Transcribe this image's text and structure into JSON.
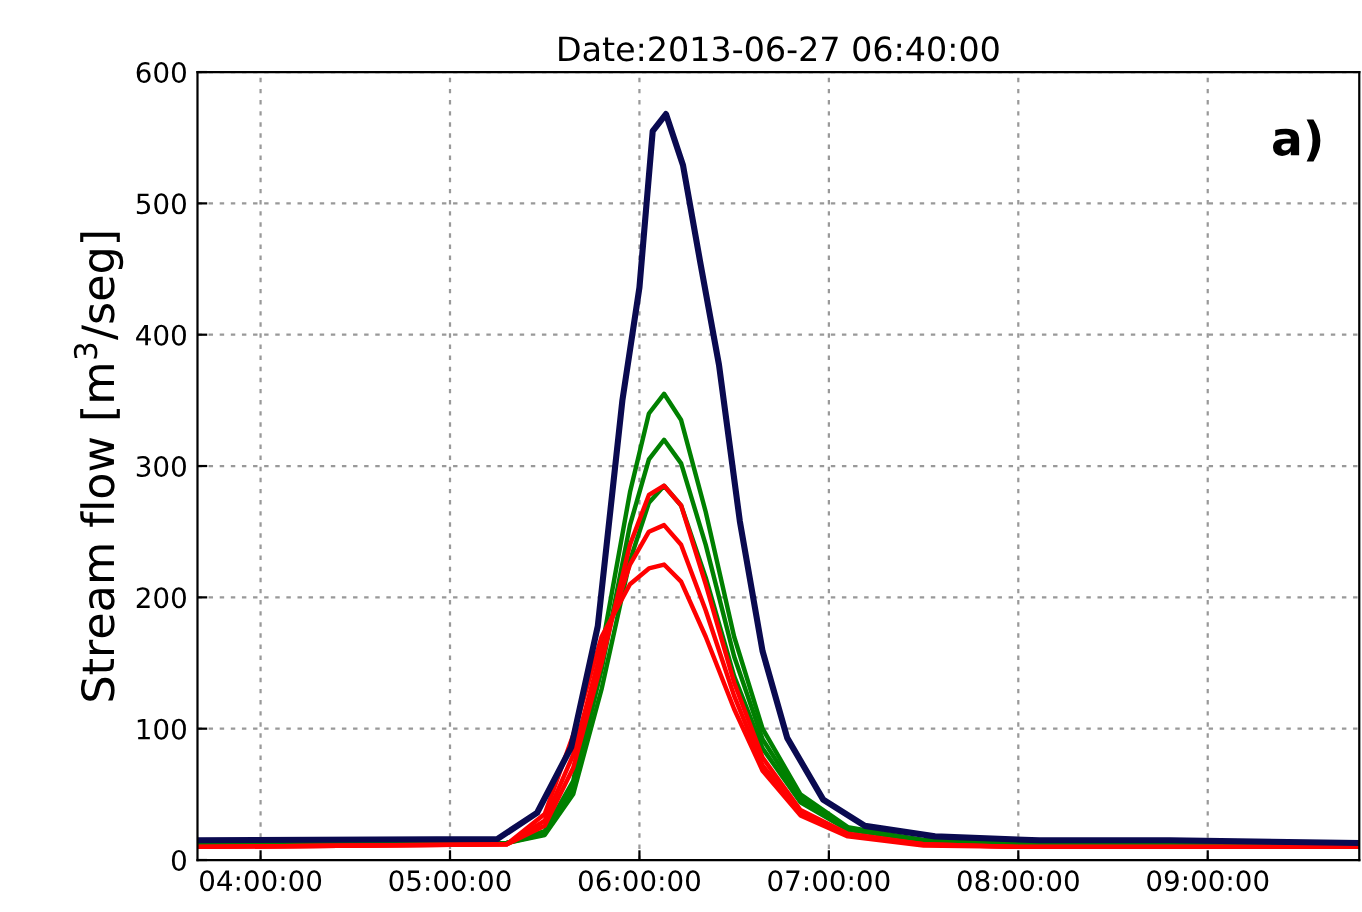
{
  "chart_data": {
    "type": "line",
    "title": "Date:2013-06-27 06:40:00",
    "ylabel": "Stream flow [m$^{3}$/seg]",
    "annotations": [
      "a)"
    ],
    "x": [
      3.667,
      5.3,
      5.5,
      5.65,
      5.8,
      5.95,
      6.05,
      6.13,
      6.22,
      6.35,
      6.5,
      6.65,
      6.85,
      7.1,
      7.5,
      8.0,
      9.8
    ],
    "series": [
      {
        "color": "#008000",
        "values": [
          12,
          13,
          22,
          60,
          160,
          280,
          340,
          355,
          335,
          265,
          170,
          100,
          50,
          25,
          15,
          13,
          12
        ]
      },
      {
        "color": "#008000",
        "values": [
          12,
          13,
          20,
          55,
          145,
          255,
          305,
          320,
          302,
          240,
          155,
          92,
          47,
          24,
          15,
          13,
          12
        ]
      },
      {
        "color": "#008000",
        "values": [
          12,
          13,
          19,
          50,
          130,
          228,
          272,
          285,
          270,
          215,
          140,
          85,
          44,
          23,
          15,
          13,
          12
        ]
      },
      {
        "color": "#ff0000",
        "values": [
          10,
          12,
          26,
          70,
          150,
          240,
          278,
          285,
          270,
          210,
          135,
          78,
          38,
          20,
          12,
          10,
          10
        ]
      },
      {
        "color": "#ff0000",
        "values": [
          10,
          12,
          30,
          80,
          160,
          225,
          250,
          255,
          240,
          190,
          125,
          72,
          36,
          19,
          12,
          10,
          10
        ]
      },
      {
        "color": "#ff0000",
        "values": [
          10,
          12,
          35,
          95,
          170,
          210,
          222,
          225,
          212,
          170,
          115,
          68,
          34,
          18,
          11,
          10,
          10
        ]
      },
      {
        "color": "#0a0a50",
        "x": [
          3.667,
          5.25,
          5.46,
          5.64,
          5.78,
          5.91,
          6.0,
          6.07,
          6.14,
          6.23,
          6.32,
          6.42,
          6.53,
          6.65,
          6.78,
          6.97,
          7.19,
          7.56,
          8.11,
          8.8,
          9.8
        ],
        "values": [
          15,
          16,
          36,
          86,
          178,
          350,
          436,
          555,
          568,
          529,
          456,
          377,
          258,
          159,
          93,
          46,
          26,
          18,
          15,
          15,
          13
        ]
      }
    ],
    "xlim": [
      3.667,
      9.8
    ],
    "xticks": [
      {
        "value": 4,
        "label": "04:00:00"
      },
      {
        "value": 5,
        "label": "05:00:00"
      },
      {
        "value": 6,
        "label": "06:00:00"
      },
      {
        "value": 7,
        "label": "07:00:00"
      },
      {
        "value": 8,
        "label": "08:00:00"
      },
      {
        "value": 9,
        "label": "09:00:00"
      }
    ],
    "ylim": [
      0,
      600
    ],
    "yticks": [
      0,
      100,
      200,
      300,
      400,
      500,
      600
    ],
    "grid": true,
    "marker": "none",
    "line_style": "solid"
  }
}
